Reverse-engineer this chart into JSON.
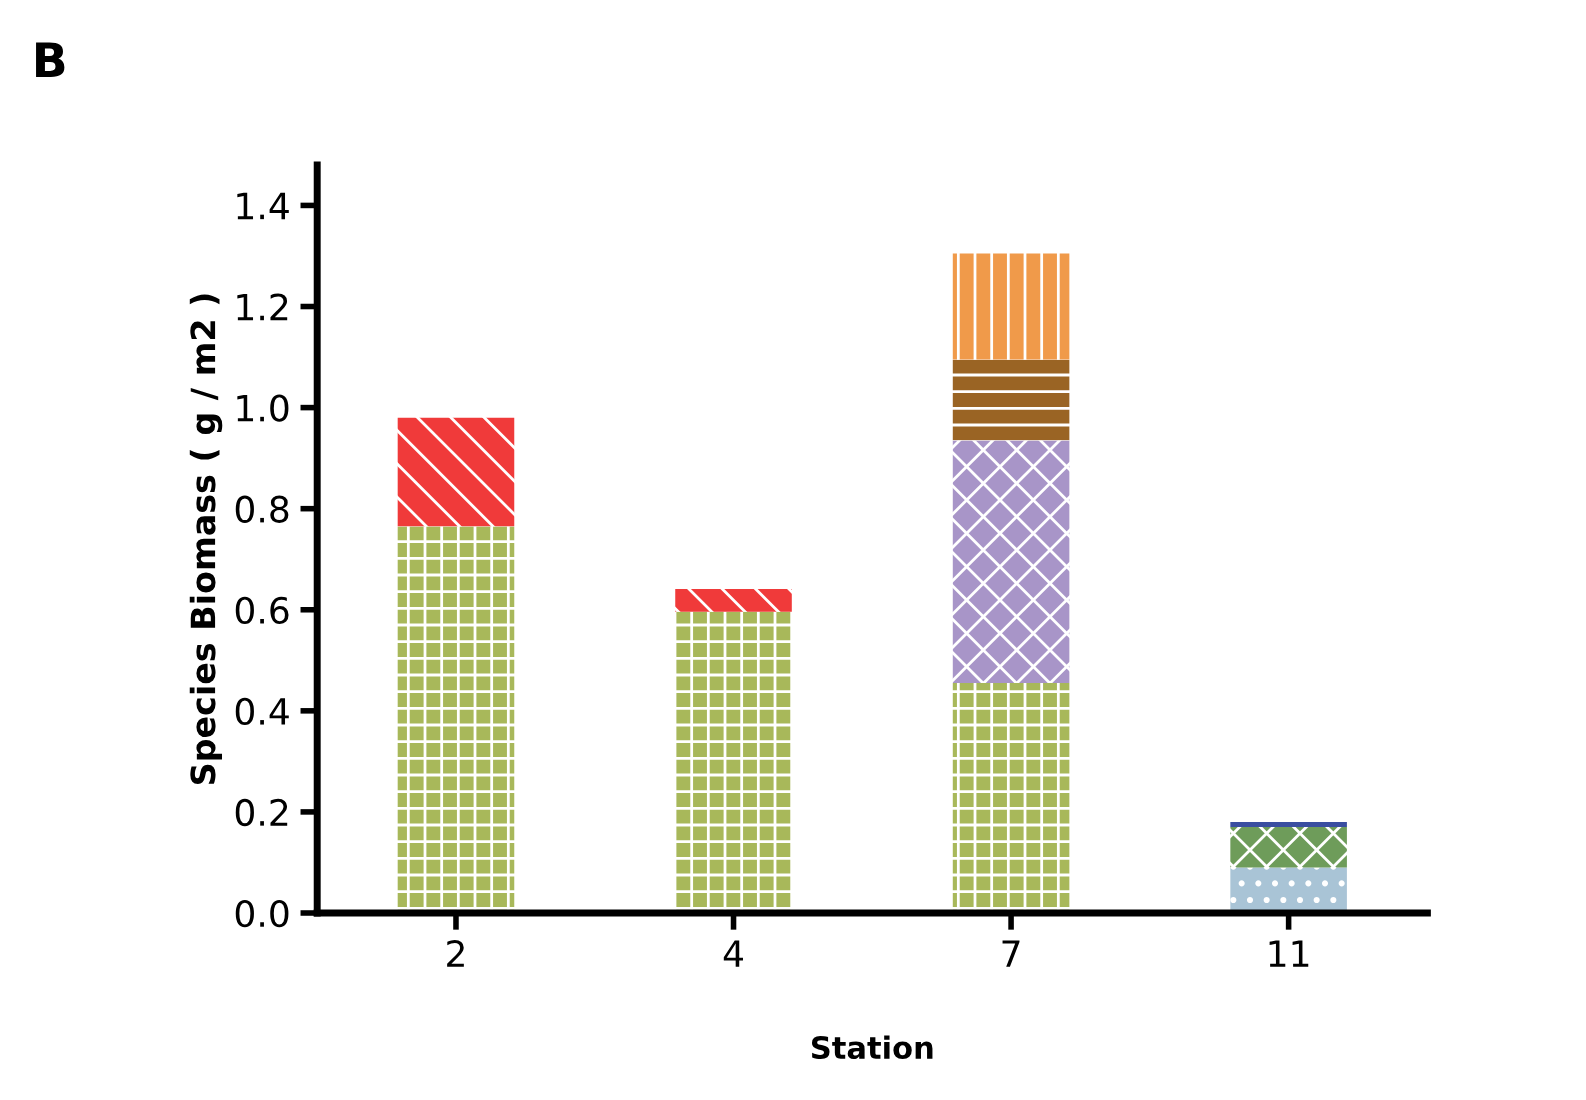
{
  "chart_data": {
    "type": "bar",
    "title": "B",
    "xlabel": "Station",
    "ylabel": "Species Biomass ( g / m2 )",
    "categories": [
      "2",
      "4",
      "7",
      "11"
    ],
    "stacked": true,
    "grid": false,
    "legend": false,
    "ylim": [
      0,
      1.48
    ],
    "yticks": [
      {
        "value": 0,
        "label": "0.0"
      },
      {
        "value": 0.2,
        "label": "0.2"
      },
      {
        "value": 0.4,
        "label": "0.4"
      },
      {
        "value": 0.6,
        "label": "0.6"
      },
      {
        "value": 0.8,
        "label": "0.8"
      },
      {
        "value": 1.0,
        "label": "1.0"
      },
      {
        "value": 1.2,
        "label": "1.2"
      },
      {
        "value": 1.4,
        "label": "1.4"
      }
    ],
    "series": [
      {
        "color": "#a8b85a",
        "values": [
          0.765,
          0.596,
          0.455,
          null
        ]
      },
      {
        "color": "#a9c4d6",
        "values": [
          null,
          null,
          null,
          0.09
        ]
      },
      {
        "color": "#f03a3a",
        "values": [
          0.215,
          0.045,
          null,
          null
        ]
      },
      {
        "color": "#a895c8",
        "values": [
          null,
          null,
          0.48,
          null
        ]
      },
      {
        "color": "#6e9c5a",
        "values": [
          null,
          null,
          null,
          0.08
        ]
      },
      {
        "color": "#9a6424",
        "values": [
          null,
          null,
          0.16,
          null
        ]
      },
      {
        "color": "#3a4ea0",
        "values": [
          null,
          null,
          null,
          0.01
        ]
      },
      {
        "color": "#f09a4a",
        "values": [
          null,
          null,
          0.21,
          null
        ]
      }
    ]
  }
}
